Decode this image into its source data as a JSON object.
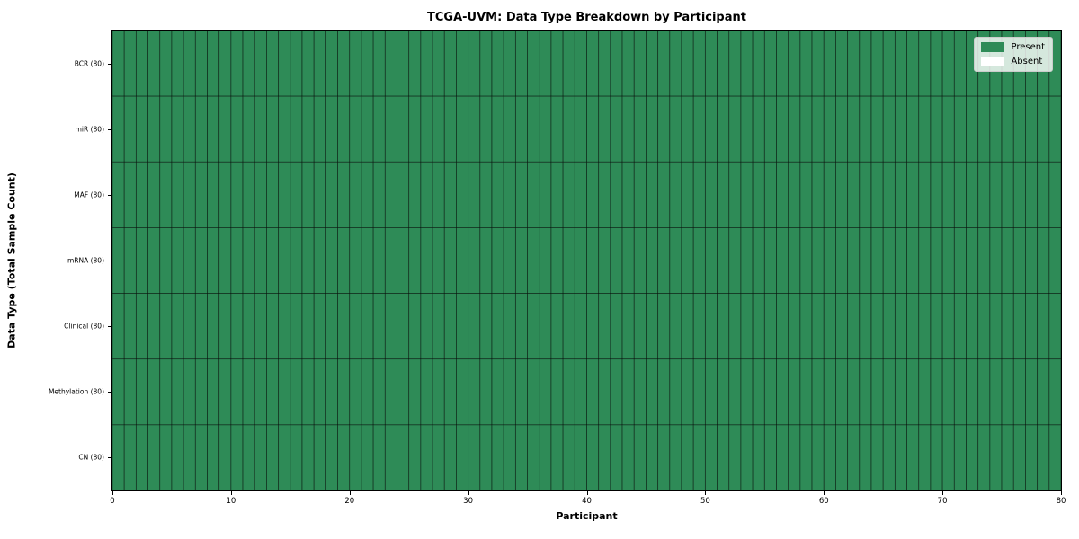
{
  "figure": {
    "background": "#ffffff"
  },
  "chart_data": {
    "type": "heatmap",
    "title": "TCGA-UVM: Data Type Breakdown by Participant",
    "xlabel": "Participant",
    "ylabel": "Data Type (Total Sample Count)",
    "xlim": [
      0,
      80
    ],
    "x_ticks": [
      0,
      10,
      20,
      30,
      40,
      50,
      60,
      70,
      80
    ],
    "n_participants": 80,
    "n_rows": 7,
    "rows": [
      {
        "label": "BCR (80)",
        "total_samples": 80,
        "present_count": 80
      },
      {
        "label": "miR (80)",
        "total_samples": 80,
        "present_count": 80
      },
      {
        "label": "MAF (80)",
        "total_samples": 80,
        "present_count": 80
      },
      {
        "label": "mRNA (80)",
        "total_samples": 80,
        "present_count": 80
      },
      {
        "label": "Clinical (80)",
        "total_samples": 80,
        "present_count": 80
      },
      {
        "label": "Methylation (80)",
        "total_samples": 80,
        "present_count": 80
      },
      {
        "label": "CN (80)",
        "total_samples": 80,
        "present_count": 80
      }
    ],
    "legend": {
      "position": "upper right",
      "entries": [
        {
          "label": "Present",
          "color": "#2e8b57"
        },
        {
          "label": "Absent",
          "color": "#ffffff"
        }
      ]
    },
    "colors": {
      "present": "#2e8b57",
      "absent": "#ffffff",
      "cell_edge": "rgba(0,0,0,0.55)",
      "axis": "#000000"
    },
    "grid": false
  }
}
